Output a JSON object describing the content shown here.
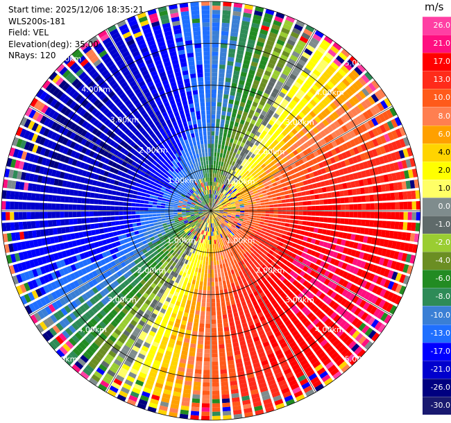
{
  "header": {
    "start_time": "Start time: 2025/12/06 18:35:21",
    "instrument": "WLS200s-181",
    "field": "Field: VEL",
    "elevation": "Elevation(deg): 35.00",
    "nrays": "NRays: 120"
  },
  "colorbar": {
    "unit": "m/s",
    "ticks": [
      "26.0",
      "21.0",
      "17.0",
      "13.0",
      "10.0",
      "8.0",
      "6.0",
      "4.0",
      "2.0",
      "1.0",
      "0.0",
      "-1.0",
      "-2.0",
      "-4.0",
      "-6.0",
      "-8.0",
      "-10.0",
      "-13.0",
      "-17.0",
      "-21.0",
      "-26.0",
      "-30.0"
    ],
    "colors": [
      "#ff3fa3",
      "#ff0f80",
      "#ff0000",
      "#ff2b1a",
      "#ff5a1a",
      "#ff7f50",
      "#ffa000",
      "#ffd400",
      "#ffff00",
      "#ffff66",
      "#7f8c8d",
      "#5f6a6a",
      "#9acd32",
      "#6b8e23",
      "#228b22",
      "#2e8b57",
      "#3a7fd5",
      "#1f6fff",
      "#0000ff",
      "#0000cd",
      "#000080",
      "#191970"
    ]
  },
  "chart_data": {
    "type": "heatmap",
    "projection": "polar-ppi",
    "field": "VEL",
    "units": "m/s",
    "nrays": 120,
    "elevation_deg": 35.0,
    "range_ring_labels": [
      "1.00km",
      "2.00km",
      "3.00km",
      "4.00km",
      "5.00km"
    ],
    "max_range_km": 5.0,
    "color_scale_bounds": [
      -30.0,
      26.0
    ],
    "velocity_pattern": {
      "max_inbound_azimuth_deg": 300,
      "max_outbound_azimuth_deg": 120,
      "peak_speed": 21.0
    }
  }
}
